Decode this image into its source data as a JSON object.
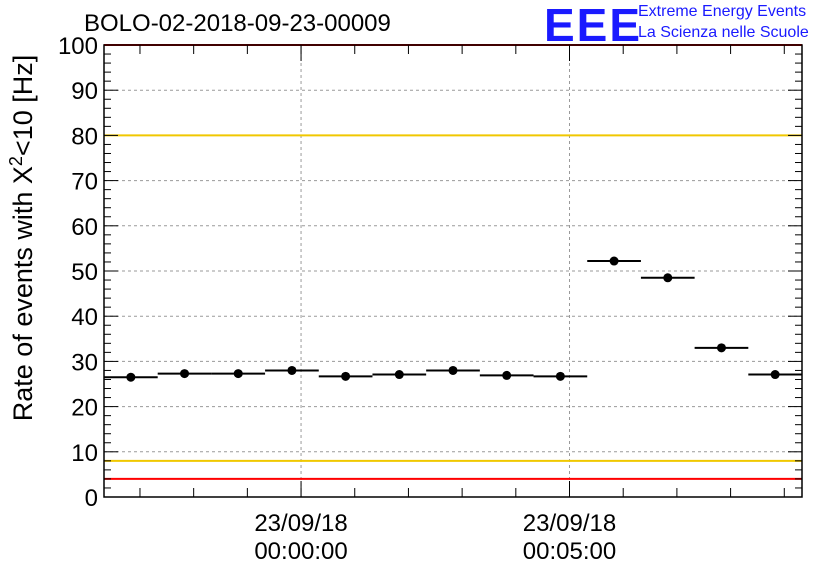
{
  "title": "BOLO-02-2018-09-23-00009",
  "logo": {
    "mark": "EEE",
    "line1": "Extreme Energy Events",
    "line2": "La Scienza nelle Scuole",
    "color": "#1a1aff"
  },
  "chart_data": {
    "type": "scatter",
    "ylabel_main": "Rate of events with X",
    "ylabel_sup": "2",
    "ylabel_tail": "<10 [Hz]",
    "ylim": [
      0,
      100
    ],
    "yticks": [
      0,
      10,
      20,
      30,
      40,
      50,
      60,
      70,
      80,
      90,
      100
    ],
    "x_range_minutes": [
      -3.67,
      9.33
    ],
    "xtick_labels": [
      {
        "minute": 0,
        "date": "23/09/18",
        "time": "00:00:00"
      },
      {
        "minute": 5,
        "date": "23/09/18",
        "time": "00:05:00"
      }
    ],
    "grid": true,
    "series": [
      {
        "marker_color": "#000000",
        "points": [
          {
            "x0": -3.67,
            "x1": -2.67,
            "y": 26.5
          },
          {
            "x0": -2.67,
            "x1": -1.67,
            "y": 27.3
          },
          {
            "x0": -1.67,
            "x1": -0.67,
            "y": 27.3
          },
          {
            "x0": -0.67,
            "x1": 0.33,
            "y": 28.0
          },
          {
            "x0": 0.33,
            "x1": 1.33,
            "y": 26.7
          },
          {
            "x0": 1.33,
            "x1": 2.33,
            "y": 27.1
          },
          {
            "x0": 2.33,
            "x1": 3.33,
            "y": 28.0
          },
          {
            "x0": 3.33,
            "x1": 4.33,
            "y": 26.9
          },
          {
            "x0": 4.33,
            "x1": 5.33,
            "y": 26.7
          },
          {
            "x0": 5.33,
            "x1": 6.33,
            "y": 52.2
          },
          {
            "x0": 6.33,
            "x1": 7.33,
            "y": 48.5
          },
          {
            "x0": 7.33,
            "x1": 8.33,
            "y": 33.0
          },
          {
            "x0": 8.33,
            "x1": 9.33,
            "y": 27.1
          }
        ]
      }
    ],
    "reference_lines": [
      {
        "y": 100,
        "color": "#ff0000"
      },
      {
        "y": 80,
        "color": "#f0c800"
      },
      {
        "y": 8,
        "color": "#f0c800"
      },
      {
        "y": 4,
        "color": "#ff0000"
      }
    ]
  }
}
